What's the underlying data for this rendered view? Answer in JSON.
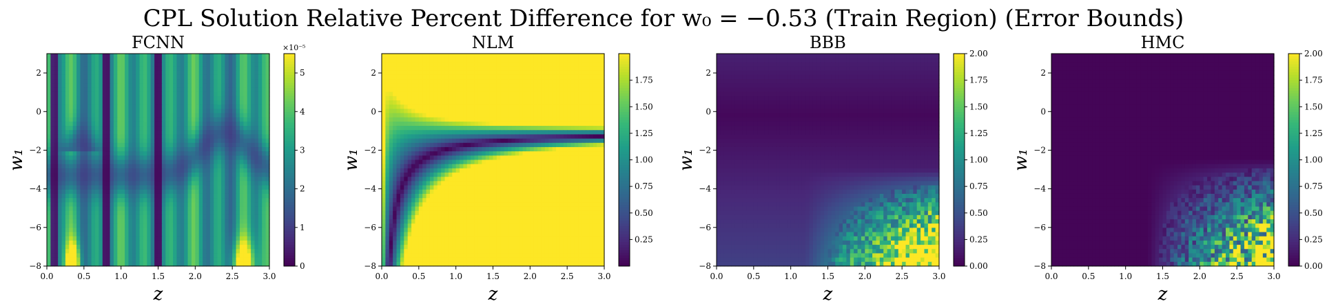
{
  "figure": {
    "title": "CPL Solution Relative Percent Difference for w₀ = −0.53 (Train Region) (Error Bounds)"
  },
  "chart_data": [
    {
      "type": "heatmap",
      "title": "FCNN",
      "xlabel": "z",
      "ylabel": "w₁",
      "xlim": [
        0.0,
        3.0
      ],
      "ylim": [
        -8,
        3
      ],
      "xticks": [
        "0.0",
        "0.5",
        "1.0",
        "1.5",
        "2.0",
        "2.5",
        "3.0"
      ],
      "yticks": [
        "−8",
        "−6",
        "−4",
        "−2",
        "0",
        "2"
      ],
      "colorbar": {
        "min": 0,
        "max": 5.5,
        "ticks": [
          "0",
          "1",
          "2",
          "3",
          "4",
          "5"
        ],
        "multiplier": "×10⁻⁵"
      },
      "colormap": "viridis",
      "pattern": "vertical bands; dark curved valley near w1 = −3.5 rising to −1 near z = 2.4; bright spots near z = 0.35 and z = 2.6 at w1 = −8"
    },
    {
      "type": "heatmap",
      "title": "NLM",
      "xlabel": "z",
      "ylabel": "w₁",
      "xlim": [
        0.0,
        3.0
      ],
      "ylim": [
        -8,
        3
      ],
      "xticks": [
        "0.0",
        "0.5",
        "1.0",
        "1.5",
        "2.0",
        "2.5",
        "3.0"
      ],
      "yticks": [
        "−8",
        "−6",
        "−4",
        "−2",
        "0",
        "2"
      ],
      "colorbar": {
        "min": 0,
        "max": 2.0,
        "ticks": [
          "0.25",
          "0.50",
          "0.75",
          "1.00",
          "1.25",
          "1.50",
          "1.75"
        ]
      },
      "colormap": "viridis",
      "pattern": "dark curved valley from (0.2, −8) bending to w1 ≈ −1 across z; saturates yellow far from valley"
    },
    {
      "type": "heatmap",
      "title": "BBB",
      "xlabel": "z",
      "ylabel": "w₁",
      "xlim": [
        0.0,
        3.0
      ],
      "ylim": [
        -8,
        3
      ],
      "xticks": [
        "0.0",
        "0.5",
        "1.0",
        "1.5",
        "2.0",
        "2.5",
        "3.0"
      ],
      "yticks": [
        "−8",
        "−6",
        "−4",
        "−2",
        "0",
        "2"
      ],
      "colorbar": {
        "min": 0,
        "max": 2.0,
        "ticks": [
          "0.00",
          "0.25",
          "0.50",
          "0.75",
          "1.00",
          "1.25",
          "1.50",
          "1.75",
          "2.00"
        ]
      },
      "colormap": "viridis",
      "pattern": "mostly dark; noisy bright region in lower right (z > 1.5, w1 < −4)"
    },
    {
      "type": "heatmap",
      "title": "HMC",
      "xlabel": "z",
      "ylabel": "w₁",
      "xlim": [
        0.0,
        3.0
      ],
      "ylim": [
        -8,
        3
      ],
      "xticks": [
        "0.0",
        "0.5",
        "1.0",
        "1.5",
        "2.0",
        "2.5",
        "3.0"
      ],
      "yticks": [
        "−8",
        "−6",
        "−4",
        "−2",
        "0",
        "2"
      ],
      "colorbar": {
        "min": 0,
        "max": 2.0,
        "ticks": [
          "0.00",
          "0.25",
          "0.50",
          "0.75",
          "1.00",
          "1.25",
          "1.50",
          "1.75",
          "2.00"
        ]
      },
      "colormap": "viridis",
      "pattern": "mostly dark; noisy bright region in lower right (z > 1.6, w1 < −3)"
    }
  ]
}
